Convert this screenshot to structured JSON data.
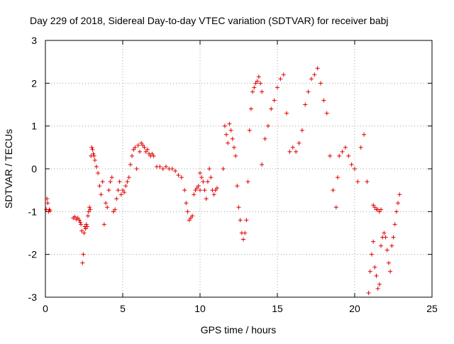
{
  "chart_data": {
    "type": "scatter",
    "title": "Day 229 of 2018, Sidereal Day-to-day VTEC variation (SDTVAR) for receiver babj",
    "xlabel": "GPS time / hours",
    "ylabel": "SDTVAR / TECUs",
    "xlim": [
      0,
      25
    ],
    "ylim": [
      -3,
      3
    ],
    "xticks": [
      0,
      5,
      10,
      15,
      20,
      25
    ],
    "yticks": [
      -3,
      -2,
      -1,
      0,
      1,
      2,
      3
    ],
    "xtick_labels": [
      "0",
      "5",
      "10",
      "15",
      "20",
      "25"
    ],
    "ytick_labels": [
      "-3",
      "-2",
      "-1",
      "0",
      "1",
      "2",
      "3"
    ],
    "grid": true,
    "marker": "plus",
    "color": "#e00000",
    "series": [
      {
        "name": "SDTVAR",
        "x": [
          0.05,
          0.1,
          0.15,
          0.2,
          0.25,
          0.3
        ],
        "y": [
          -0.95,
          -0.7,
          -0.8,
          -1.0,
          -0.95,
          -0.98
        ]
      },
      {
        "name": "SDTVAR",
        "x": [
          1.8,
          1.9,
          2.0,
          2.1,
          2.2,
          2.25,
          2.3,
          2.35,
          2.4,
          2.45,
          2.5,
          2.55,
          2.6,
          2.65,
          2.7
        ],
        "y": [
          -1.15,
          -1.12,
          -1.18,
          -1.15,
          -1.2,
          -1.25,
          -1.3,
          -1.45,
          -2.2,
          -2.0,
          -1.5,
          -1.35,
          -1.4,
          -1.3,
          -1.35
        ]
      },
      {
        "name": "SDTVAR",
        "x": [
          2.75,
          2.8,
          2.85,
          2.9,
          2.95,
          3.0,
          3.05,
          3.1,
          3.15,
          3.2,
          3.3,
          3.4,
          3.5,
          3.6,
          3.7,
          3.8,
          3.9,
          4.0,
          4.1,
          4.2,
          4.3,
          4.4,
          4.5,
          4.6,
          4.7,
          4.8,
          4.9,
          5.0,
          5.1,
          5.2,
          5.3,
          5.4
        ],
        "y": [
          -1.1,
          -1.0,
          -0.9,
          -0.95,
          0.3,
          0.5,
          0.45,
          0.35,
          0.3,
          0.2,
          0.05,
          -0.1,
          -0.4,
          -0.6,
          -0.3,
          -1.3,
          -0.8,
          -0.9,
          -0.5,
          -0.3,
          -0.2,
          -1.0,
          -0.95,
          -0.7,
          -0.5,
          -0.3,
          -0.6,
          -0.5,
          -0.55,
          -0.4,
          -0.3,
          -0.2
        ]
      },
      {
        "name": "SDTVAR",
        "x": [
          5.5,
          5.6,
          5.7,
          5.8,
          5.9,
          6.0,
          6.1,
          6.2,
          6.3,
          6.4,
          6.5,
          6.6,
          6.7,
          6.8,
          6.9,
          7.0,
          7.2,
          7.4,
          7.6,
          7.8,
          8.0,
          8.2,
          8.4,
          8.6,
          8.8,
          9.0,
          9.1,
          9.2,
          9.3,
          9.4,
          9.5,
          9.6,
          9.7,
          9.8,
          9.9,
          10.0
        ],
        "y": [
          0.1,
          0.3,
          0.45,
          0.5,
          0.0,
          0.55,
          0.4,
          0.6,
          0.55,
          0.5,
          0.4,
          0.45,
          0.35,
          0.3,
          0.35,
          0.3,
          0.05,
          0.05,
          0.0,
          0.05,
          0.0,
          0.0,
          -0.05,
          -0.15,
          -0.2,
          -0.5,
          -0.8,
          -1.0,
          -1.2,
          -1.15,
          -1.1,
          -0.6,
          -0.5,
          -0.45,
          -0.4,
          -0.5
        ]
      },
      {
        "name": "SDTVAR",
        "x": [
          10.0,
          10.1,
          10.2,
          10.3,
          10.4,
          10.5,
          10.6,
          10.7,
          10.8,
          10.9,
          11.0,
          11.1
        ],
        "y": [
          -0.1,
          -0.2,
          -0.3,
          -0.5,
          -0.7,
          -0.3,
          0.0,
          -0.2,
          -0.5,
          -0.6,
          -0.5,
          -0.45
        ]
      },
      {
        "name": "SDTVAR",
        "x": [
          11.5,
          11.6,
          11.7,
          11.8,
          11.9,
          12.0,
          12.1,
          12.2,
          12.3,
          12.4,
          12.5,
          12.6,
          12.7,
          12.8,
          12.9,
          13.0,
          13.1,
          13.2,
          13.3,
          13.4,
          13.5,
          13.6,
          13.7,
          13.8,
          13.9,
          14.0
        ],
        "y": [
          0.0,
          1.0,
          0.8,
          0.6,
          1.05,
          0.9,
          0.7,
          0.5,
          0.3,
          -0.4,
          -0.9,
          -1.2,
          -1.5,
          -1.65,
          -1.5,
          -1.2,
          -0.3,
          0.9,
          1.4,
          1.8,
          1.9,
          2.0,
          2.05,
          2.15,
          2.0,
          1.8
        ]
      },
      {
        "name": "SDTVAR",
        "x": [
          14.0,
          14.2,
          14.4,
          14.6,
          14.8,
          15.0,
          15.2,
          15.4,
          15.6,
          15.8,
          16.0,
          16.2,
          16.4,
          16.6,
          16.8,
          17.0,
          17.2,
          17.4,
          17.6,
          17.8,
          18.0,
          18.2,
          18.4,
          18.6,
          18.8
        ],
        "y": [
          0.1,
          0.7,
          1.0,
          1.4,
          1.6,
          1.9,
          2.1,
          2.2,
          1.3,
          0.4,
          0.5,
          0.4,
          0.6,
          0.9,
          1.5,
          1.8,
          2.1,
          2.2,
          2.35,
          2.0,
          1.6,
          1.3,
          0.3,
          -0.5,
          -0.9
        ]
      },
      {
        "name": "SDTVAR",
        "x": [
          18.9,
          19.0,
          19.2,
          19.4,
          19.6,
          19.8,
          20.0,
          20.2,
          20.4,
          20.6,
          20.8
        ],
        "y": [
          -0.2,
          0.3,
          0.4,
          0.5,
          0.3,
          0.1,
          0.0,
          -0.3,
          0.5,
          0.8,
          -0.3
        ]
      },
      {
        "name": "SDTVAR",
        "x": [
          20.9,
          21.0,
          21.1,
          21.2,
          21.3,
          21.4,
          21.5,
          21.6,
          21.7,
          21.8,
          21.9,
          22.0,
          22.1,
          22.2,
          22.3,
          22.4,
          22.5,
          22.6,
          22.7,
          22.8,
          22.9
        ],
        "y": [
          -2.9,
          -2.4,
          -2.0,
          -1.7,
          -2.3,
          -2.5,
          -2.8,
          -2.7,
          -1.8,
          -1.6,
          -1.5,
          -1.6,
          -1.9,
          -2.2,
          -2.4,
          -1.8,
          -1.6,
          -1.3,
          -1.0,
          -0.8,
          -0.6
        ]
      },
      {
        "name": "SDTVAR",
        "x": [
          21.2,
          21.3,
          21.4,
          21.5,
          21.6,
          21.7
        ],
        "y": [
          -0.85,
          -0.9,
          -0.95,
          -0.95,
          -1.0,
          -0.95
        ]
      }
    ]
  }
}
